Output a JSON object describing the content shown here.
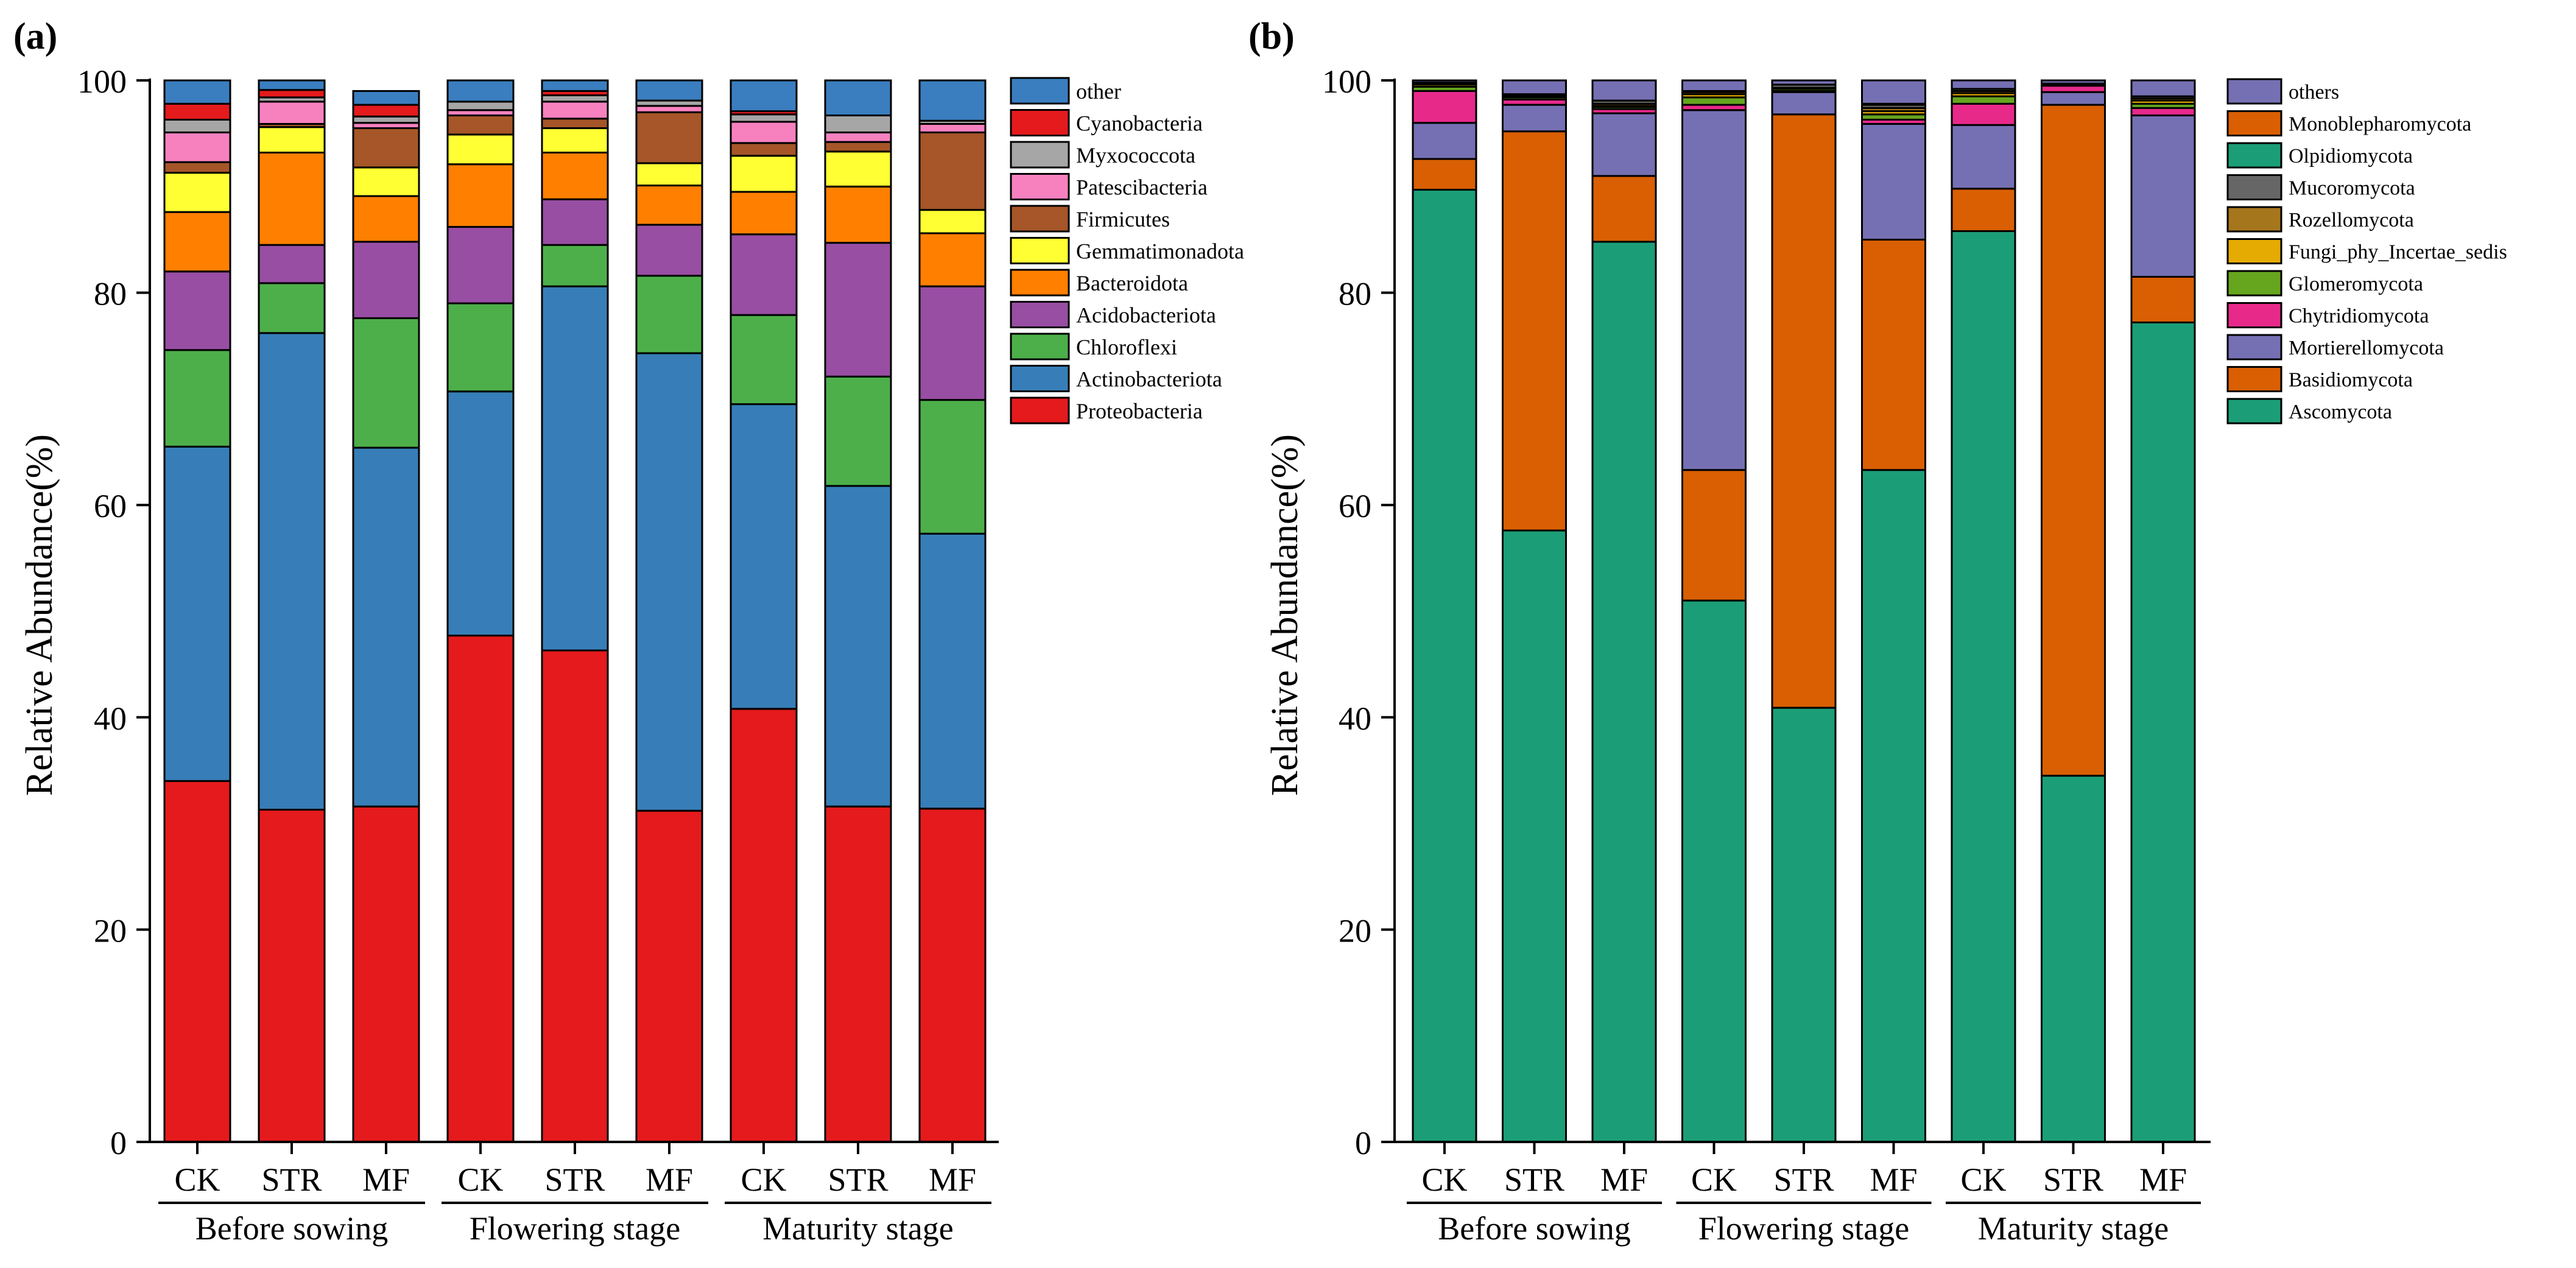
{
  "colors": {
    "a": {
      "other": "#3A7EC0",
      "Cyanobacteria": "#E41A1C",
      "Myxococcota": "#A6A6A6",
      "Patescibacteria": "#F781BF",
      "Firmicutes": "#A65628",
      "Gemmatimonadota": "#FFFF33",
      "Bacteroidota": "#FF7F00",
      "Acidobacteriota": "#984EA3",
      "Chloroflexi": "#4DAF4A",
      "Actinobacteriota": "#377EB8",
      "Proteobacteria": "#E41A1C"
    },
    "b": {
      "others": "#7570B3",
      "Monoblepharomycota": "#D95F02",
      "Olpidiomycota": "#1B9E77",
      "Mucoromycota": "#666666",
      "Rozellomycota": "#A6761D",
      "Fungi_phy_Incertae_sedis": "#E6AB02",
      "Glomeromycota": "#66A61E",
      "Chytridiomycota": "#E7298A",
      "Mortierellomycota": "#7570B3",
      "Basidiomycota": "#D95F02",
      "Ascomycota": "#1B9E77"
    }
  },
  "chart_data": [
    {
      "panel_label": "(a)",
      "type": "bar",
      "stacked": true,
      "ylabel": "Relative Abundance(%)",
      "ylim": [
        0,
        100
      ],
      "yticks": [
        "0",
        "20",
        "40",
        "60",
        "80",
        "100"
      ],
      "categories": [
        "CK",
        "STR",
        "MF",
        "CK",
        "STR",
        "MF",
        "CK",
        "STR",
        "MF"
      ],
      "groups": [
        "Before sowing",
        "Flowering stage",
        "Maturity stage"
      ],
      "legend": [
        "other",
        "Cyanobacteria",
        "Myxococcota",
        "Patescibacteria",
        "Firmicutes",
        "Gemmatimonadota",
        "Bacteroidota",
        "Acidobacteriota",
        "Chloroflexi",
        "Actinobacteriota",
        "Proteobacteria"
      ],
      "series": [
        {
          "name": "Proteobacteria",
          "values": [
            34.0,
            31.3,
            31.6,
            47.7,
            46.3,
            31.2,
            40.8,
            31.6,
            31.4
          ]
        },
        {
          "name": "Actinobacteriota",
          "values": [
            31.5,
            44.9,
            33.8,
            23.0,
            34.3,
            43.1,
            28.7,
            30.2,
            25.9
          ]
        },
        {
          "name": "Chloroflexi",
          "values": [
            9.1,
            4.7,
            12.2,
            8.3,
            3.9,
            7.3,
            8.4,
            10.3,
            12.6
          ]
        },
        {
          "name": "Acidobacteriota",
          "values": [
            7.4,
            3.6,
            7.2,
            7.2,
            4.3,
            4.8,
            7.6,
            12.6,
            10.7
          ]
        },
        {
          "name": "Bacteroidota",
          "values": [
            5.6,
            8.7,
            4.3,
            5.9,
            4.4,
            3.7,
            4.0,
            5.3,
            5.0
          ]
        },
        {
          "name": "Gemmatimonadota",
          "values": [
            3.7,
            2.4,
            2.7,
            2.8,
            2.3,
            2.1,
            3.4,
            3.3,
            2.2
          ]
        },
        {
          "name": "Firmicutes",
          "values": [
            1.0,
            0.3,
            3.7,
            1.8,
            0.9,
            4.8,
            1.2,
            0.9,
            7.3
          ]
        },
        {
          "name": "Patescibacteria",
          "values": [
            2.8,
            2.1,
            0.5,
            0.5,
            1.6,
            0.6,
            2.0,
            0.9,
            0.8
          ]
        },
        {
          "name": "Myxococcota",
          "values": [
            1.2,
            0.4,
            0.6,
            0.8,
            0.6,
            0.5,
            0.7,
            1.6,
            0.3
          ]
        },
        {
          "name": "Cyanobacteria",
          "values": [
            1.5,
            0.7,
            1.1,
            0.0,
            0.4,
            0.0,
            0.3,
            0.0,
            0.0
          ]
        },
        {
          "name": "other",
          "values": [
            2.2,
            0.9,
            1.3,
            2.0,
            1.0,
            1.9,
            2.9,
            3.3,
            3.8
          ]
        }
      ]
    },
    {
      "panel_label": "(b)",
      "type": "bar",
      "stacked": true,
      "ylabel": "Relative Abundance(%)",
      "ylim": [
        0,
        100
      ],
      "yticks": [
        "0",
        "20",
        "40",
        "60",
        "80",
        "100"
      ],
      "categories": [
        "CK",
        "STR",
        "MF",
        "CK",
        "STR",
        "MF",
        "CK",
        "STR",
        "MF"
      ],
      "groups": [
        "Before sowing",
        "Flowering stage",
        "Maturity stage"
      ],
      "legend": [
        "others",
        "Monoblepharomycota",
        "Olpidiomycota",
        "Mucoromycota",
        "Rozellomycota",
        "Fungi_phy_Incertae_sedis",
        "Glomeromycota",
        "Chytridiomycota",
        "Mortierellomycota",
        "Basidiomycota",
        "Ascomycota"
      ],
      "series": [
        {
          "name": "Ascomycota",
          "values": [
            89.7,
            57.6,
            84.8,
            51.0,
            40.9,
            63.3,
            85.8,
            34.5,
            77.2
          ]
        },
        {
          "name": "Basidiomycota",
          "values": [
            2.9,
            37.6,
            6.2,
            12.3,
            55.9,
            21.7,
            4.0,
            63.2,
            4.3
          ]
        },
        {
          "name": "Mortierellomycota",
          "values": [
            3.4,
            2.5,
            5.9,
            33.9,
            2.1,
            10.9,
            6.0,
            1.2,
            15.2
          ]
        },
        {
          "name": "Chytridiomycota",
          "values": [
            3.0,
            0.5,
            0.4,
            0.5,
            0.1,
            0.4,
            2.0,
            0.6,
            0.7
          ]
        },
        {
          "name": "Glomeromycota",
          "values": [
            0.4,
            0.2,
            0.2,
            0.7,
            0.2,
            0.5,
            0.7,
            0.1,
            0.4
          ]
        },
        {
          "name": "Fungi_phy_Incertae_sedis",
          "values": [
            0.2,
            0.1,
            0.1,
            0.3,
            0.1,
            0.3,
            0.3,
            0.0,
            0.3
          ]
        },
        {
          "name": "Rozellomycota",
          "values": [
            0.1,
            0.1,
            0.2,
            0.2,
            0.0,
            0.3,
            0.2,
            0.0,
            0.2
          ]
        },
        {
          "name": "Mucoromycota",
          "values": [
            0.1,
            0.1,
            0.3,
            0.1,
            0.3,
            0.3,
            0.2,
            0.1,
            0.2
          ]
        },
        {
          "name": "Olpidiomycota",
          "values": [
            0.0,
            0.0,
            0.0,
            0.0,
            0.0,
            0.1,
            0.0,
            0.0,
            0.0
          ]
        },
        {
          "name": "Monoblepharomycota",
          "values": [
            0.0,
            0.0,
            0.0,
            0.0,
            0.0,
            0.0,
            0.0,
            0.0,
            0.0
          ]
        },
        {
          "name": "others",
          "values": [
            0.2,
            1.3,
            1.9,
            1.0,
            0.4,
            2.2,
            0.8,
            0.3,
            1.5
          ]
        }
      ]
    }
  ]
}
